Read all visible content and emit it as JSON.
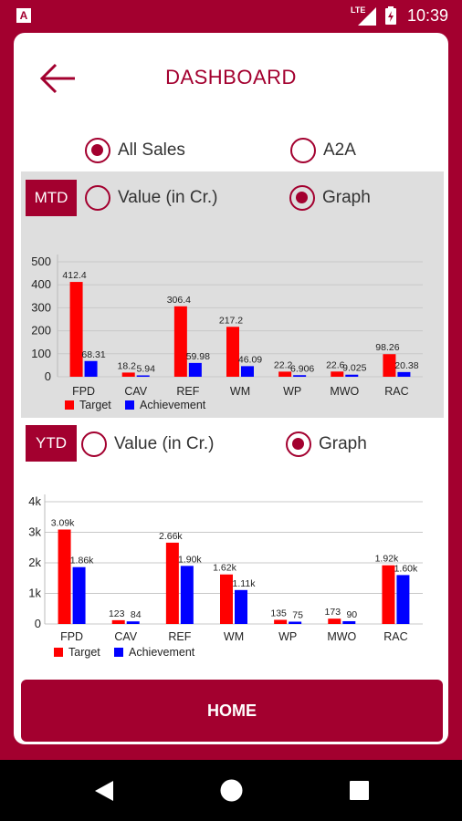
{
  "statusbar": {
    "time": "10:39",
    "network": "LTE",
    "app_icon": "A"
  },
  "header": {
    "title": "DASHBOARD",
    "back_icon": "arrow-left-icon"
  },
  "sales_filter": {
    "options": [
      {
        "label": "All Sales",
        "selected": true
      },
      {
        "label": "A2A",
        "selected": false
      }
    ]
  },
  "mtd": {
    "tag": "MTD",
    "options": [
      {
        "label": "Value (in Cr.)",
        "selected": false
      },
      {
        "label": "Graph",
        "selected": true
      }
    ]
  },
  "ytd": {
    "tag": "YTD",
    "options": [
      {
        "label": "Value (in Cr.)",
        "selected": false
      },
      {
        "label": "Graph",
        "selected": true
      }
    ]
  },
  "colors": {
    "primary": "#a3002f",
    "target": "#ff0000",
    "achievement": "#0000ff"
  },
  "chart_data": [
    {
      "type": "bar",
      "categories": [
        "FPD",
        "CAV",
        "REF",
        "WM",
        "WP",
        "MWO",
        "RAC"
      ],
      "series": [
        {
          "name": "Target",
          "values": [
            412.4,
            18.2,
            306.4,
            217.2,
            22.2,
            22.6,
            98.26
          ],
          "labels": [
            "412.4",
            "18.2",
            "306.4",
            "217.2",
            "22.2",
            "22.6",
            "98.26"
          ]
        },
        {
          "name": "Achievement",
          "values": [
            68.31,
            5.94,
            59.98,
            46.09,
            6.906,
            9.025,
            20.38
          ],
          "labels": [
            "68.31",
            "5.94",
            "59.98",
            "46.09",
            "6.906",
            "9.025",
            "20.38"
          ]
        }
      ],
      "yticks": [
        "0",
        "100",
        "200",
        "300",
        "400",
        "500"
      ],
      "ylim": [
        0,
        500
      ],
      "grid": true,
      "legend": "bottom-left"
    },
    {
      "type": "bar",
      "categories": [
        "FPD",
        "CAV",
        "REF",
        "WM",
        "WP",
        "MWO",
        "RAC"
      ],
      "series": [
        {
          "name": "Target",
          "values": [
            3090,
            123,
            2660,
            1620,
            135,
            173,
            1920
          ],
          "labels": [
            "3.09k",
            "123",
            "2.66k",
            "1.62k",
            "135",
            "173",
            "1.92k"
          ]
        },
        {
          "name": "Achievement",
          "values": [
            1860,
            84,
            1900,
            1110,
            75,
            90,
            1600
          ],
          "labels": [
            "1.86k",
            "84",
            "1.90k",
            "1.11k",
            "75",
            "90",
            "1.60k"
          ]
        }
      ],
      "yticks": [
        "0",
        "1k",
        "2k",
        "3k",
        "4k"
      ],
      "ylim": [
        0,
        4000
      ],
      "grid": true,
      "legend": "bottom-left"
    }
  ],
  "home_button": {
    "label": "HOME"
  }
}
